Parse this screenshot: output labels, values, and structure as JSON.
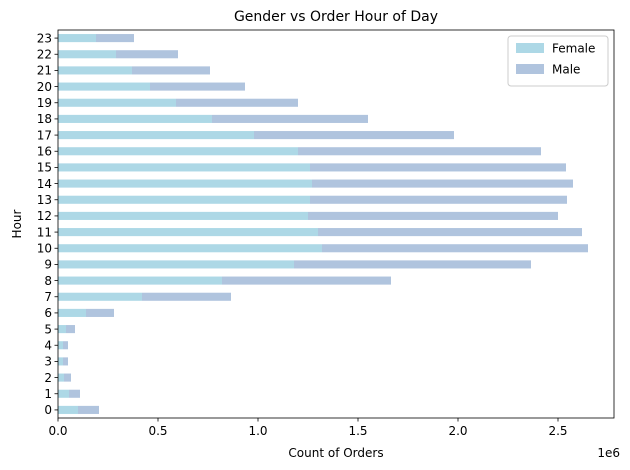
{
  "chart_data": {
    "type": "bar",
    "orientation": "horizontal",
    "stacked": true,
    "title": "Gender vs Order Hour of Day",
    "xlabel": "Count of Orders",
    "ylabel": "Hour",
    "x_scale_label": "1e6",
    "xlim": [
      0,
      2.78
    ],
    "xticks": [
      "0.0",
      "0.5",
      "1.0",
      "1.5",
      "2.0",
      "2.5"
    ],
    "categories": [
      "0",
      "1",
      "2",
      "3",
      "4",
      "5",
      "6",
      "7",
      "8",
      "9",
      "10",
      "11",
      "12",
      "13",
      "14",
      "15",
      "16",
      "17",
      "18",
      "19",
      "20",
      "21",
      "22",
      "23"
    ],
    "series": [
      {
        "name": "Female",
        "color": "#add8e6",
        "values": [
          0.1,
          0.055,
          0.03,
          0.025,
          0.025,
          0.04,
          0.14,
          0.42,
          0.82,
          1.18,
          1.32,
          1.3,
          1.25,
          1.26,
          1.27,
          1.26,
          1.2,
          0.98,
          0.77,
          0.59,
          0.46,
          0.37,
          0.29,
          0.19
        ]
      },
      {
        "name": "Male",
        "color": "#b0c4de",
        "values": [
          0.105,
          0.055,
          0.035,
          0.025,
          0.025,
          0.045,
          0.14,
          0.445,
          0.845,
          1.185,
          1.33,
          1.32,
          1.25,
          1.285,
          1.305,
          1.28,
          1.215,
          1.0,
          0.78,
          0.61,
          0.475,
          0.39,
          0.31,
          0.19
        ]
      }
    ],
    "legend": {
      "position": "top-right",
      "entries": [
        "Female",
        "Male"
      ]
    },
    "grid": false
  }
}
